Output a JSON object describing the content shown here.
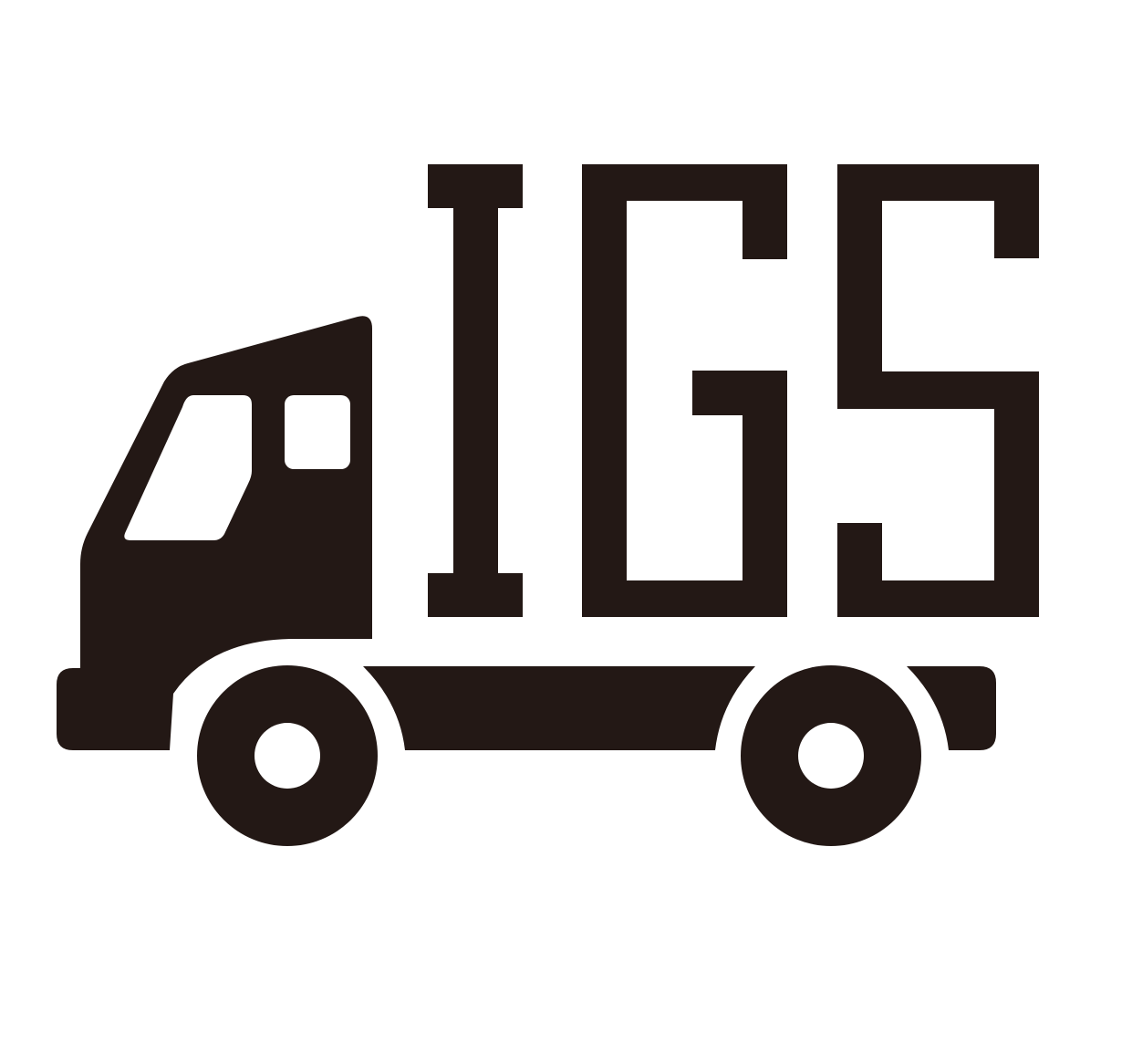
{
  "logo": {
    "text": "IGS",
    "icon": "truck-icon",
    "colors": {
      "ink": "#231815",
      "background": "#ffffff"
    }
  }
}
